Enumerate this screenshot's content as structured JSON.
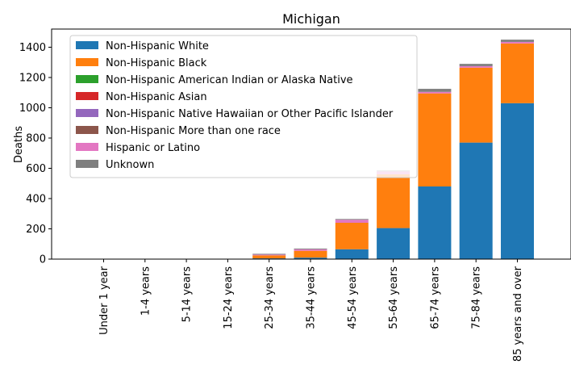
{
  "chart_data": {
    "type": "bar",
    "stacked": true,
    "title": "Michigan",
    "xlabel": "",
    "ylabel": "Deaths",
    "ylim": [
      0,
      1520
    ],
    "yticks": [
      0,
      200,
      400,
      600,
      800,
      1000,
      1200,
      1400
    ],
    "legend_position": "top-left",
    "grid": false,
    "categories": [
      "Under 1 year",
      "1-4 years",
      "5-14 years",
      "15-24 years",
      "25-34 years",
      "35-44 years",
      "45-54 years",
      "55-64 years",
      "65-74 years",
      "75-84 years",
      "85 years and over"
    ],
    "series": [
      {
        "name": "Non-Hispanic White",
        "color": "#1f77b4",
        "values": [
          0,
          0,
          0,
          0,
          5,
          10,
          65,
          205,
          480,
          770,
          1030
        ]
      },
      {
        "name": "Non-Hispanic Black",
        "color": "#ff7f0e",
        "values": [
          0,
          0,
          0,
          0,
          20,
          45,
          175,
          355,
          615,
          495,
          395
        ]
      },
      {
        "name": "Non-Hispanic American Indian or Alaska Native",
        "color": "#2ca02c",
        "values": [
          0,
          0,
          0,
          0,
          0,
          0,
          0,
          0,
          0,
          0,
          0
        ]
      },
      {
        "name": "Non-Hispanic Asian",
        "color": "#d62728",
        "values": [
          0,
          0,
          0,
          0,
          0,
          0,
          0,
          0,
          0,
          0,
          0
        ]
      },
      {
        "name": "Non-Hispanic Native Hawaiian or Other Pacific Islander",
        "color": "#9467bd",
        "values": [
          0,
          0,
          0,
          0,
          0,
          0,
          0,
          0,
          0,
          0,
          0
        ]
      },
      {
        "name": "Non-Hispanic More than one race",
        "color": "#8c564b",
        "values": [
          0,
          0,
          0,
          0,
          0,
          0,
          0,
          0,
          0,
          0,
          0
        ]
      },
      {
        "name": "Hispanic or Latino",
        "color": "#e377c2",
        "values": [
          0,
          0,
          0,
          0,
          5,
          10,
          20,
          20,
          10,
          10,
          10
        ]
      },
      {
        "name": "Unknown",
        "color": "#7f7f7f",
        "values": [
          0,
          0,
          0,
          0,
          5,
          5,
          5,
          5,
          20,
          15,
          15
        ]
      }
    ]
  }
}
